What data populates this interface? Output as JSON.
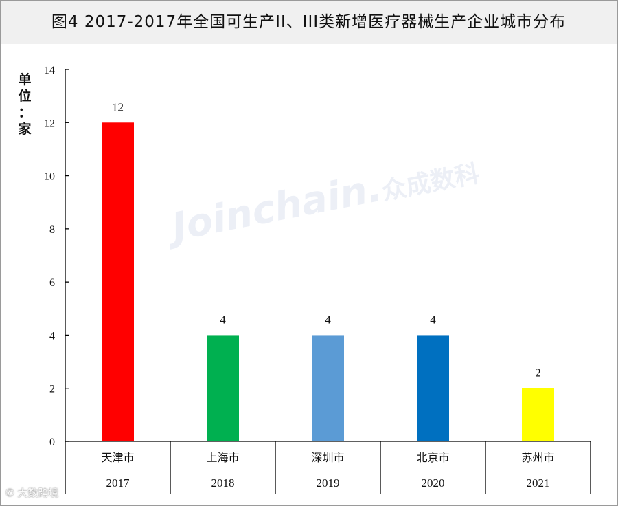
{
  "title": "图4  2017-2017年全国可生产II、III类新增医疗器械生产企业城市分布",
  "unit_label": [
    "单",
    "位",
    "：",
    "家"
  ],
  "watermark": {
    "latin": "Joinchain",
    "cn": "众成数科"
  },
  "corner_mark": "大数跨境",
  "chart_data": {
    "type": "bar",
    "categories": [
      "天津市",
      "上海市",
      "深圳市",
      "北京市",
      "苏州市"
    ],
    "years": [
      "2017",
      "2018",
      "2019",
      "2020",
      "2021"
    ],
    "values": [
      12,
      4,
      4,
      4,
      2
    ],
    "data_labels": [
      "12",
      "4",
      "4",
      "4",
      "2"
    ],
    "colors": [
      "#ff0000",
      "#00b050",
      "#5b9bd5",
      "#0070c0",
      "#ffff00"
    ],
    "ylim": [
      0,
      14
    ],
    "yticks": [
      "0",
      "2",
      "4",
      "6",
      "8",
      "10",
      "12",
      "14"
    ],
    "ylabel": "单位：家",
    "grid": false,
    "legend": "none"
  }
}
